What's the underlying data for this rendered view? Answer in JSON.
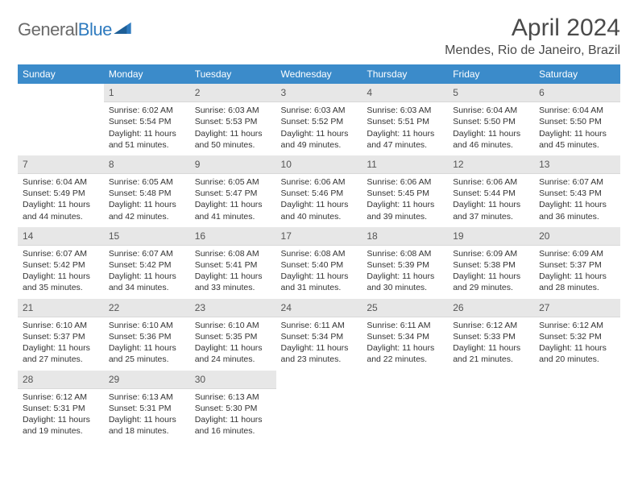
{
  "brand": {
    "word1": "General",
    "word2": "Blue"
  },
  "title": "April 2024",
  "location": "Mendes, Rio de Janeiro, Brazil",
  "colors": {
    "header_bg": "#3b8bca",
    "header_fg": "#ffffff",
    "daynum_bg": "#e7e7e7",
    "text": "#333333",
    "title_color": "#4a4a4a",
    "logo_gray": "#6a6a6a",
    "logo_blue": "#2f7bbf"
  },
  "day_headers": [
    "Sunday",
    "Monday",
    "Tuesday",
    "Wednesday",
    "Thursday",
    "Friday",
    "Saturday"
  ],
  "weeks": [
    [
      null,
      {
        "n": "1",
        "sr": "6:02 AM",
        "ss": "5:54 PM",
        "dl": "11 hours and 51 minutes."
      },
      {
        "n": "2",
        "sr": "6:03 AM",
        "ss": "5:53 PM",
        "dl": "11 hours and 50 minutes."
      },
      {
        "n": "3",
        "sr": "6:03 AM",
        "ss": "5:52 PM",
        "dl": "11 hours and 49 minutes."
      },
      {
        "n": "4",
        "sr": "6:03 AM",
        "ss": "5:51 PM",
        "dl": "11 hours and 47 minutes."
      },
      {
        "n": "5",
        "sr": "6:04 AM",
        "ss": "5:50 PM",
        "dl": "11 hours and 46 minutes."
      },
      {
        "n": "6",
        "sr": "6:04 AM",
        "ss": "5:50 PM",
        "dl": "11 hours and 45 minutes."
      }
    ],
    [
      {
        "n": "7",
        "sr": "6:04 AM",
        "ss": "5:49 PM",
        "dl": "11 hours and 44 minutes."
      },
      {
        "n": "8",
        "sr": "6:05 AM",
        "ss": "5:48 PM",
        "dl": "11 hours and 42 minutes."
      },
      {
        "n": "9",
        "sr": "6:05 AM",
        "ss": "5:47 PM",
        "dl": "11 hours and 41 minutes."
      },
      {
        "n": "10",
        "sr": "6:06 AM",
        "ss": "5:46 PM",
        "dl": "11 hours and 40 minutes."
      },
      {
        "n": "11",
        "sr": "6:06 AM",
        "ss": "5:45 PM",
        "dl": "11 hours and 39 minutes."
      },
      {
        "n": "12",
        "sr": "6:06 AM",
        "ss": "5:44 PM",
        "dl": "11 hours and 37 minutes."
      },
      {
        "n": "13",
        "sr": "6:07 AM",
        "ss": "5:43 PM",
        "dl": "11 hours and 36 minutes."
      }
    ],
    [
      {
        "n": "14",
        "sr": "6:07 AM",
        "ss": "5:42 PM",
        "dl": "11 hours and 35 minutes."
      },
      {
        "n": "15",
        "sr": "6:07 AM",
        "ss": "5:42 PM",
        "dl": "11 hours and 34 minutes."
      },
      {
        "n": "16",
        "sr": "6:08 AM",
        "ss": "5:41 PM",
        "dl": "11 hours and 33 minutes."
      },
      {
        "n": "17",
        "sr": "6:08 AM",
        "ss": "5:40 PM",
        "dl": "11 hours and 31 minutes."
      },
      {
        "n": "18",
        "sr": "6:08 AM",
        "ss": "5:39 PM",
        "dl": "11 hours and 30 minutes."
      },
      {
        "n": "19",
        "sr": "6:09 AM",
        "ss": "5:38 PM",
        "dl": "11 hours and 29 minutes."
      },
      {
        "n": "20",
        "sr": "6:09 AM",
        "ss": "5:37 PM",
        "dl": "11 hours and 28 minutes."
      }
    ],
    [
      {
        "n": "21",
        "sr": "6:10 AM",
        "ss": "5:37 PM",
        "dl": "11 hours and 27 minutes."
      },
      {
        "n": "22",
        "sr": "6:10 AM",
        "ss": "5:36 PM",
        "dl": "11 hours and 25 minutes."
      },
      {
        "n": "23",
        "sr": "6:10 AM",
        "ss": "5:35 PM",
        "dl": "11 hours and 24 minutes."
      },
      {
        "n": "24",
        "sr": "6:11 AM",
        "ss": "5:34 PM",
        "dl": "11 hours and 23 minutes."
      },
      {
        "n": "25",
        "sr": "6:11 AM",
        "ss": "5:34 PM",
        "dl": "11 hours and 22 minutes."
      },
      {
        "n": "26",
        "sr": "6:12 AM",
        "ss": "5:33 PM",
        "dl": "11 hours and 21 minutes."
      },
      {
        "n": "27",
        "sr": "6:12 AM",
        "ss": "5:32 PM",
        "dl": "11 hours and 20 minutes."
      }
    ],
    [
      {
        "n": "28",
        "sr": "6:12 AM",
        "ss": "5:31 PM",
        "dl": "11 hours and 19 minutes."
      },
      {
        "n": "29",
        "sr": "6:13 AM",
        "ss": "5:31 PM",
        "dl": "11 hours and 18 minutes."
      },
      {
        "n": "30",
        "sr": "6:13 AM",
        "ss": "5:30 PM",
        "dl": "11 hours and 16 minutes."
      },
      null,
      null,
      null,
      null
    ]
  ],
  "labels": {
    "sunrise": "Sunrise: ",
    "sunset": "Sunset: ",
    "daylight": "Daylight: "
  }
}
